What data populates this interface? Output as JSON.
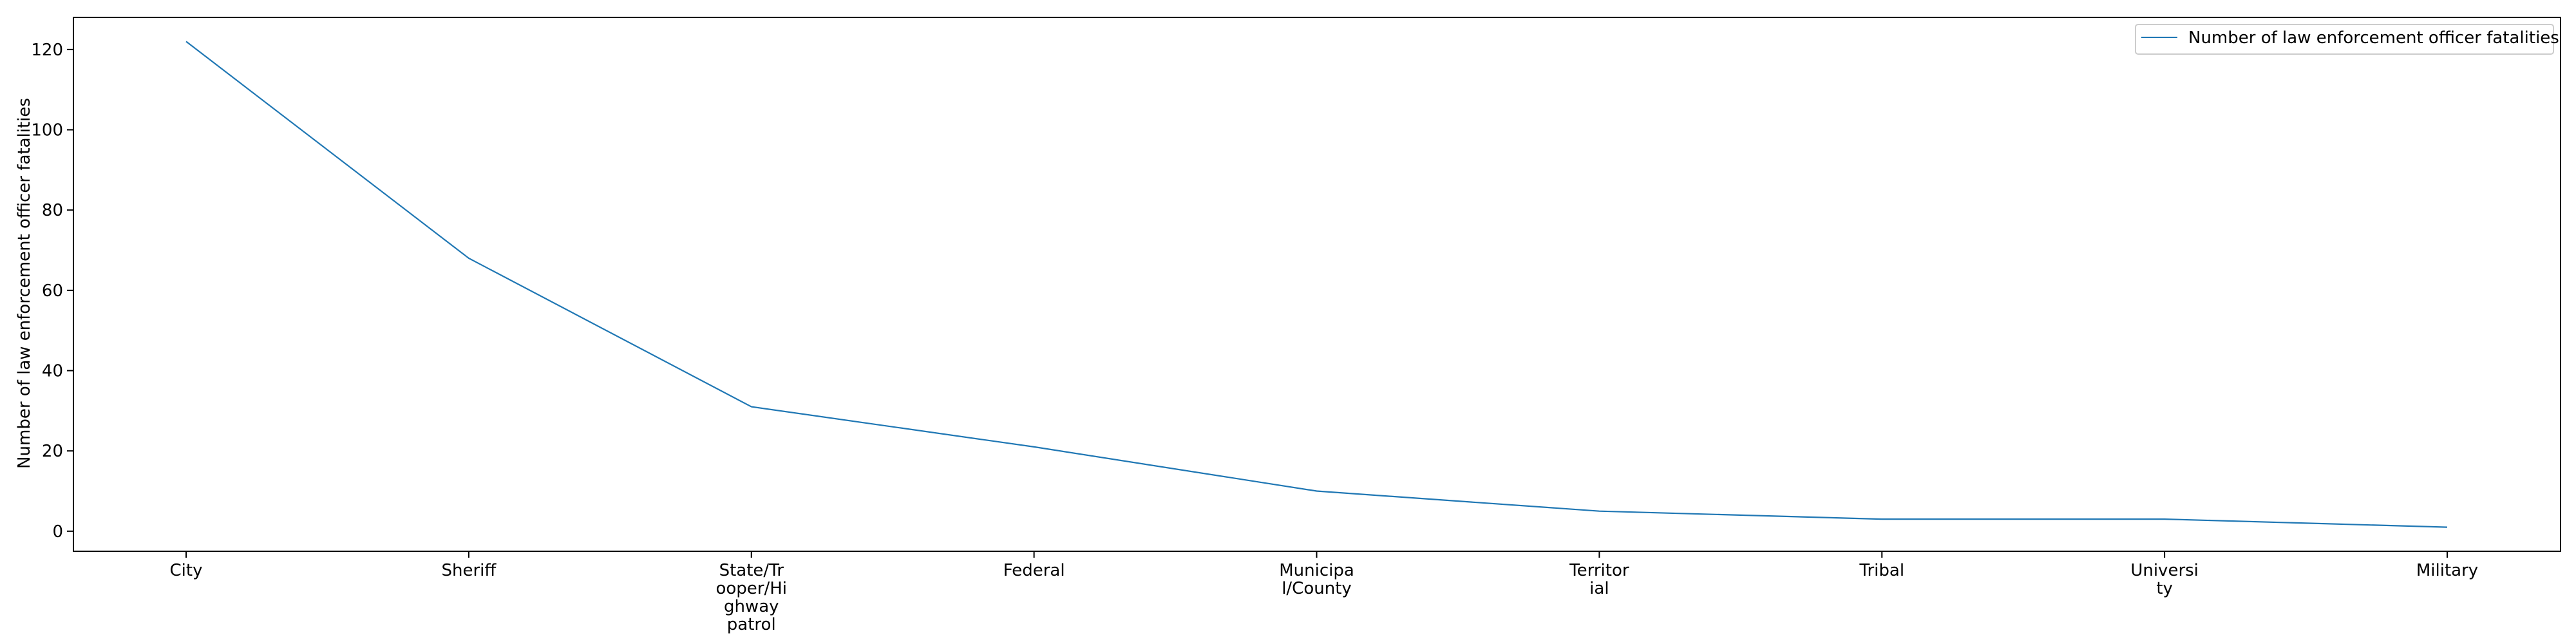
{
  "chart_data": {
    "type": "line",
    "title": "",
    "xlabel": "",
    "ylabel": "Number of law enforcement officer fatalities",
    "categories": [
      "City",
      "Sheriff",
      "State/Trooper/Highway patrol",
      "Federal",
      "Municipal/County",
      "Territorial",
      "Tribal",
      "University",
      "Military"
    ],
    "category_labels": [
      [
        "City"
      ],
      [
        "Sheriff"
      ],
      [
        "State/Tr",
        "ooper/Hi",
        "ghway",
        "patrol"
      ],
      [
        "Federal"
      ],
      [
        "Municipa",
        "l/County"
      ],
      [
        "Territor",
        "ial"
      ],
      [
        "Tribal"
      ],
      [
        "Universi",
        "ty"
      ],
      [
        "Military"
      ]
    ],
    "series": [
      {
        "name": "Number of law enforcement officer fatalities",
        "color": "#1f77b4",
        "values": [
          122,
          68,
          31,
          21,
          10,
          5,
          3,
          3,
          1
        ]
      }
    ],
    "ylim": [
      -5,
      128
    ],
    "yticks": [
      0,
      20,
      40,
      60,
      80,
      100,
      120
    ],
    "grid": false,
    "legend_position": "upper right"
  }
}
